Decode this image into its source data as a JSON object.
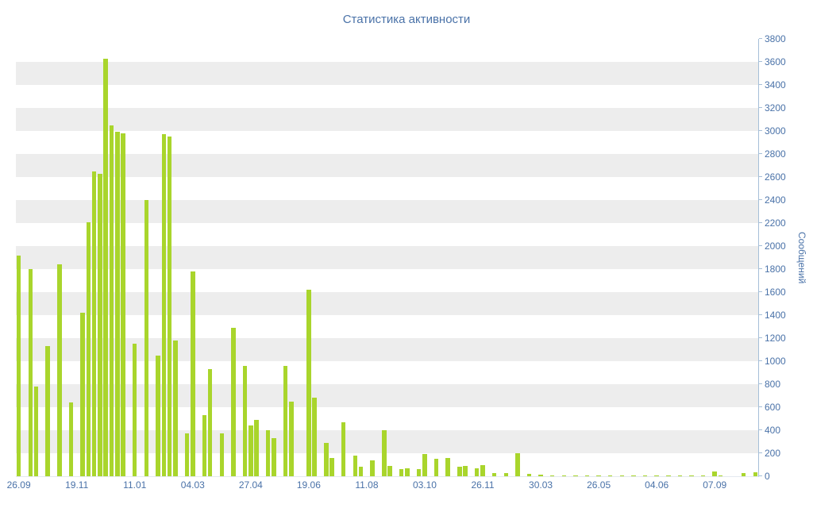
{
  "title": "Статистика активности",
  "colors": {
    "bar": "#a9d52c",
    "text": "#4a72a8",
    "band": "#ededed",
    "axis": "#a6bfd8"
  },
  "chart_data": {
    "type": "bar",
    "title": "Статистика активности",
    "xlabel": "",
    "ylabel": "Сообщений",
    "ylim": [
      0,
      3800
    ],
    "ytick_step": 200,
    "grid": "alternating horizontal bands",
    "legend": "none",
    "x_tick_labels": [
      "26.09",
      "19.11",
      "11.01",
      "04.03",
      "27.04",
      "19.06",
      "11.08",
      "03.10",
      "26.11",
      "30.03",
      "26.05",
      "04.06",
      "07.09"
    ],
    "x_tick_every": 10,
    "values": [
      1920,
      0,
      1800,
      780,
      0,
      1130,
      0,
      1840,
      0,
      640,
      0,
      1420,
      2210,
      2650,
      2630,
      3630,
      3050,
      2990,
      2980,
      0,
      1150,
      0,
      2400,
      0,
      1050,
      2970,
      2950,
      1180,
      0,
      370,
      1780,
      0,
      530,
      930,
      0,
      370,
      0,
      1290,
      0,
      960,
      440,
      490,
      0,
      400,
      330,
      0,
      960,
      650,
      0,
      0,
      1620,
      680,
      0,
      290,
      160,
      0,
      470,
      0,
      180,
      80,
      0,
      140,
      0,
      400,
      90,
      0,
      60,
      70,
      0,
      60,
      190,
      0,
      150,
      0,
      160,
      0,
      80,
      90,
      0,
      70,
      100,
      0,
      30,
      0,
      30,
      0,
      200,
      0,
      20,
      0,
      12,
      0,
      10,
      0,
      10,
      0,
      8,
      0,
      8,
      0,
      6,
      0,
      6,
      0,
      5,
      0,
      5,
      0,
      5,
      0,
      6,
      0,
      5,
      0,
      5,
      0,
      8,
      0,
      10,
      0,
      40,
      10,
      0,
      0,
      0,
      25,
      0,
      35
    ]
  }
}
